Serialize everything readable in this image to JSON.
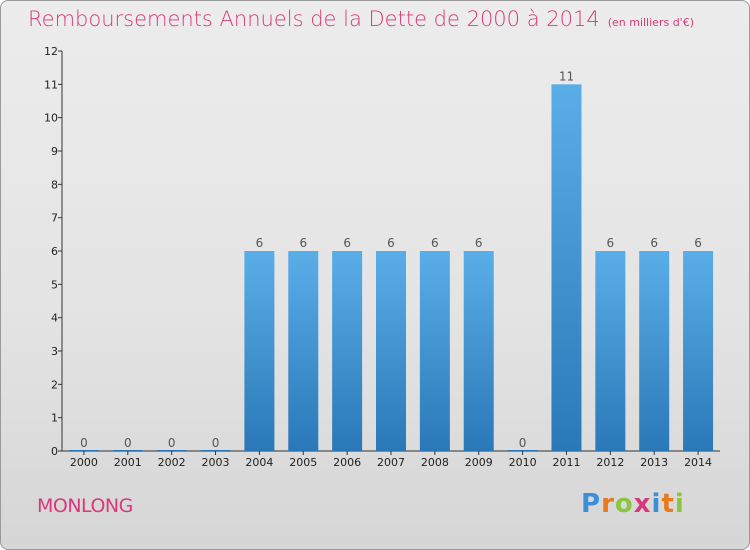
{
  "title": "Remboursements Annuels de la Dette de 2000 à 2014",
  "unit": "(en milliers d'€)",
  "commune": "MONLONG",
  "brand": "Proxiti",
  "colors": {
    "title": "#d63a7a",
    "bar_top": "#5aaee8",
    "bar_bottom": "#2a78b8",
    "brand": [
      "#3a8fd6",
      "#e87a1e",
      "#8cc63f",
      "#d63a7a",
      "#3a8fd6",
      "#e87a1e",
      "#8cc63f"
    ]
  },
  "chart_data": {
    "type": "bar",
    "title": "Remboursements Annuels de la Dette de 2000 à 2014",
    "subtitle": "(en milliers d'€)",
    "xlabel": "",
    "ylabel": "",
    "categories": [
      "2000",
      "2001",
      "2002",
      "2003",
      "2004",
      "2005",
      "2006",
      "2007",
      "2008",
      "2009",
      "2010",
      "2011",
      "2012",
      "2013",
      "2014"
    ],
    "values": [
      0,
      0,
      0,
      0,
      6,
      6,
      6,
      6,
      6,
      6,
      0,
      11,
      6,
      6,
      6
    ],
    "ylim": [
      0,
      12
    ],
    "yticks": [
      0,
      1,
      2,
      3,
      4,
      5,
      6,
      7,
      8,
      9,
      10,
      11,
      12
    ],
    "grid": false,
    "data_labels": true
  }
}
